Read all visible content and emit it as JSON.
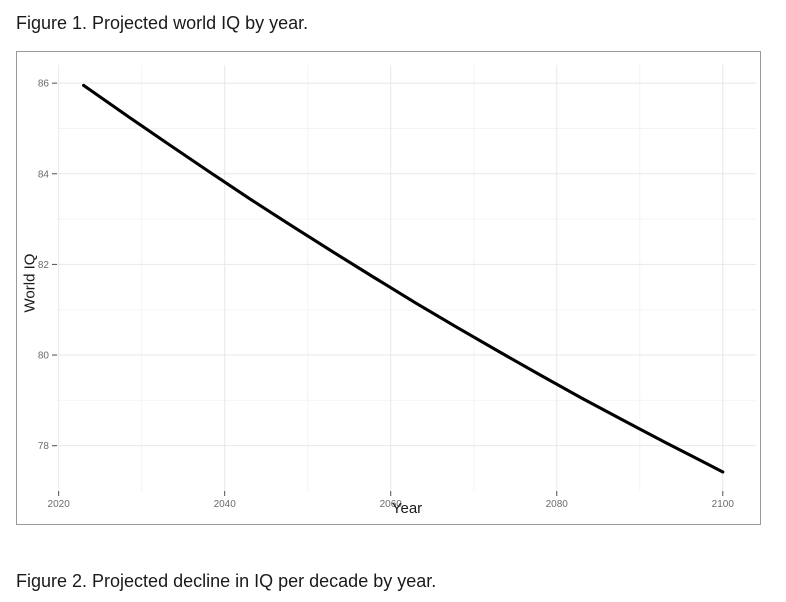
{
  "page": {
    "figure1_caption": "Figure 1. Projected world IQ by year.",
    "figure2_caption": "Figure 2. Projected decline in IQ per decade by year."
  },
  "chart_data": {
    "type": "line",
    "title": "",
    "xlabel": "Year",
    "ylabel": "World IQ",
    "x_ticks": [
      2020,
      2040,
      2060,
      2080,
      2100
    ],
    "x_minor_ticks": [
      2030,
      2050,
      2070,
      2090
    ],
    "y_ticks": [
      86,
      84,
      82,
      80,
      78
    ],
    "y_minor_ticks": [
      85,
      83,
      81,
      79
    ],
    "xlim": [
      2019.8,
      2104.0
    ],
    "ylim": [
      77.0,
      86.4
    ],
    "grid": "major+minor",
    "legend": "none",
    "colors": {
      "line": "#000000",
      "grid_major": "#e8e8e8",
      "grid_minor": "#f5f4f4",
      "tick_label": "#6b6b6b",
      "tick_mark": "#4d4d4d",
      "figure_border": "#999999"
    },
    "series": [
      {
        "name": "Projected world IQ",
        "x": [
          2023,
          2028,
          2033,
          2038,
          2043,
          2048,
          2053,
          2058,
          2063,
          2068,
          2073,
          2078,
          2083,
          2088,
          2093,
          2098,
          2100
        ],
        "y": [
          85.95,
          85.31,
          84.68,
          84.06,
          83.45,
          82.86,
          82.28,
          81.71,
          81.15,
          80.61,
          80.08,
          79.56,
          79.05,
          78.56,
          78.08,
          77.61,
          77.42
        ]
      }
    ]
  }
}
